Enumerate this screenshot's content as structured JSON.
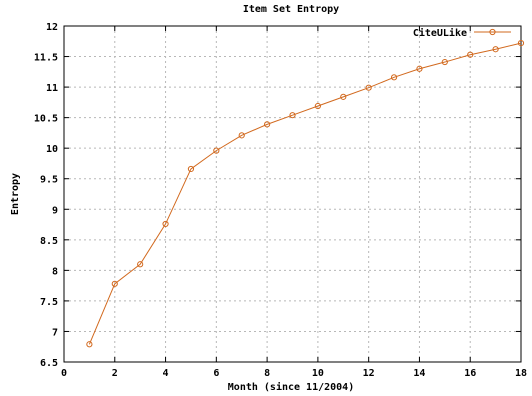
{
  "chart_data": {
    "type": "line",
    "title": "Item Set Entropy",
    "xlabel": "Month (since 11/2004)",
    "ylabel": "Entropy",
    "xlim": [
      0,
      18
    ],
    "ylim": [
      6.5,
      12
    ],
    "xticks": [
      0,
      2,
      4,
      6,
      8,
      10,
      12,
      14,
      16,
      18
    ],
    "yticks": [
      6.5,
      7,
      7.5,
      8,
      8.5,
      9,
      9.5,
      10,
      10.5,
      11,
      11.5,
      12
    ],
    "grid": true,
    "legend_position": "top-right",
    "series": [
      {
        "name": "CiteULike",
        "color": "#d2691e",
        "marker": "circle",
        "x": [
          1,
          2,
          3,
          4,
          5,
          6,
          7,
          8,
          9,
          10,
          11,
          12,
          13,
          14,
          15,
          16,
          17,
          18
        ],
        "y": [
          6.79,
          7.78,
          8.1,
          8.76,
          9.66,
          9.96,
          10.21,
          10.39,
          10.54,
          10.69,
          10.84,
          10.99,
          11.16,
          11.3,
          11.41,
          11.53,
          11.62,
          11.72
        ]
      }
    ]
  }
}
